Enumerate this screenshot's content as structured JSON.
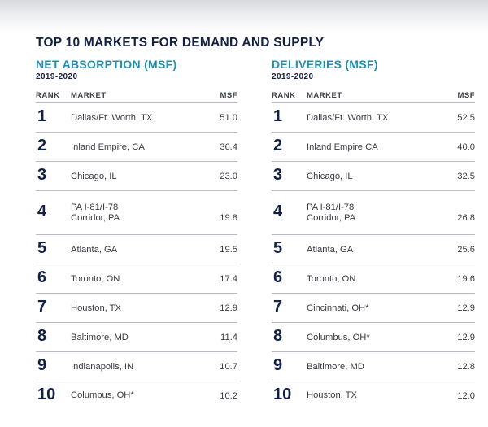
{
  "title": "TOP 10 MARKETS FOR DEMAND AND SUPPLY",
  "net_absorption": {
    "title": "NET ABSORPTION (MSF)",
    "subtitle": "2019-2020",
    "headers": {
      "rank": "RANK",
      "market": "MARKET",
      "msf": "MSF"
    },
    "rows": [
      {
        "rank": "1",
        "market_lines": [
          "Dallas/Ft. Worth, TX"
        ],
        "msf": "51.0"
      },
      {
        "rank": "2",
        "market_lines": [
          "Inland Empire, CA"
        ],
        "msf": "36.4"
      },
      {
        "rank": "3",
        "market_lines": [
          "Chicago, IL"
        ],
        "msf": "23.0"
      },
      {
        "rank": "4",
        "market_lines": [
          "PA I-81/I-78",
          "Corridor, PA"
        ],
        "msf": "19.8"
      },
      {
        "rank": "5",
        "market_lines": [
          "Atlanta, GA"
        ],
        "msf": "19.5"
      },
      {
        "rank": "6",
        "market_lines": [
          "Toronto, ON"
        ],
        "msf": "17.4"
      },
      {
        "rank": "7",
        "market_lines": [
          "Houston, TX"
        ],
        "msf": "12.9"
      },
      {
        "rank": "8",
        "market_lines": [
          "Baltimore, MD"
        ],
        "msf": "11.4"
      },
      {
        "rank": "9",
        "market_lines": [
          "Indianapolis, IN"
        ],
        "msf": "10.7"
      },
      {
        "rank": "10",
        "market_lines": [
          "Columbus, OH*"
        ],
        "msf": "10.2"
      }
    ]
  },
  "deliveries": {
    "title": "DELIVERIES (MSF)",
    "subtitle": "2019-2020",
    "headers": {
      "rank": "RANK",
      "market": "MARKET",
      "msf": "MSF"
    },
    "rows": [
      {
        "rank": "1",
        "market_lines": [
          "Dallas/Ft. Worth, TX"
        ],
        "msf": "52.5"
      },
      {
        "rank": "2",
        "market_lines": [
          "Inland Empire CA"
        ],
        "msf": "40.0"
      },
      {
        "rank": "3",
        "market_lines": [
          "Chicago, IL"
        ],
        "msf": "32.5"
      },
      {
        "rank": "4",
        "market_lines": [
          "PA I-81/I-78",
          "Corridor, PA"
        ],
        "msf": "26.8"
      },
      {
        "rank": "5",
        "market_lines": [
          "Atlanta, GA"
        ],
        "msf": "25.6"
      },
      {
        "rank": "6",
        "market_lines": [
          "Toronto, ON"
        ],
        "msf": "19.6"
      },
      {
        "rank": "7",
        "market_lines": [
          "Cincinnati, OH*"
        ],
        "msf": "12.9"
      },
      {
        "rank": "8",
        "market_lines": [
          "Columbus, OH*"
        ],
        "msf": "12.9"
      },
      {
        "rank": "9",
        "market_lines": [
          "Baltimore, MD"
        ],
        "msf": "12.8"
      },
      {
        "rank": "10",
        "market_lines": [
          "Houston, TX"
        ],
        "msf": "12.0"
      }
    ]
  }
}
